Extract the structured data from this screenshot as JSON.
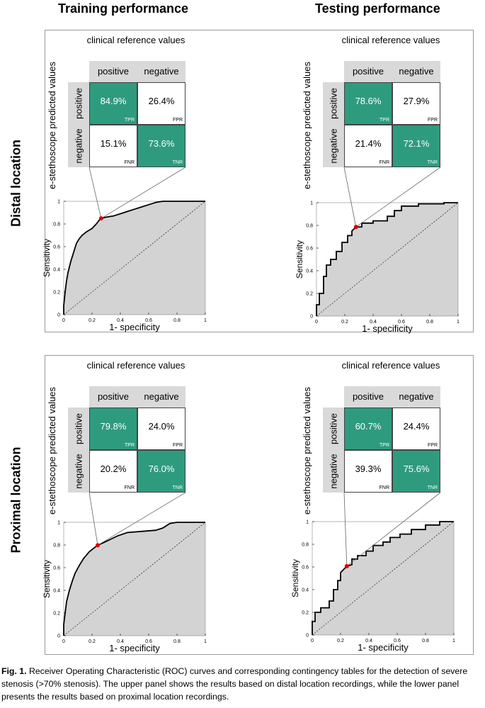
{
  "column_titles": [
    "Training performance",
    "Testing performance"
  ],
  "row_titles": [
    "Distal location",
    "Proximal location"
  ],
  "table_labels": {
    "ref_title": "clinical reference values",
    "pred_title": "e-stethoscope predicted values",
    "positive": "positive",
    "negative": "negative",
    "tpr": "TPR",
    "fpr": "FPR",
    "fnr": "FNR",
    "tnr": "TNR"
  },
  "caption": {
    "label": "Fig. 1.",
    "text": "Receiver Operating Characteristic (ROC) curves and corresponding contingency tables for the detection of severe stenosis (>70% stenosis). The upper panel shows the results based on distal location recordings, while the lower panel presents the results based on proximal location recordings."
  },
  "chart_data": [
    {
      "type": "line",
      "panel": "distal-training",
      "xlabel": "1- specificity",
      "ylabel": "Sensitivity",
      "xlim": [
        0,
        1
      ],
      "ylim": [
        0,
        1
      ],
      "x_ticks": [
        "0",
        "0.2",
        "0.4",
        "0.6",
        "0.8",
        "1"
      ],
      "y_ticks": [
        "0",
        "0.2",
        "0.4",
        "0.6",
        "0.8",
        "1"
      ],
      "operating_point": [
        0.264,
        0.849
      ],
      "table": {
        "tpr": "84.9%",
        "fpr": "26.4%",
        "fnr": "15.1%",
        "tnr": "73.6%"
      },
      "curve": [
        [
          0,
          0
        ],
        [
          0,
          0.08
        ],
        [
          0.01,
          0.2
        ],
        [
          0.02,
          0.3
        ],
        [
          0.03,
          0.37
        ],
        [
          0.05,
          0.47
        ],
        [
          0.07,
          0.55
        ],
        [
          0.09,
          0.63
        ],
        [
          0.11,
          0.67
        ],
        [
          0.13,
          0.7
        ],
        [
          0.16,
          0.73
        ],
        [
          0.2,
          0.76
        ],
        [
          0.23,
          0.8
        ],
        [
          0.26,
          0.849
        ],
        [
          0.3,
          0.86
        ],
        [
          0.35,
          0.87
        ],
        [
          0.4,
          0.89
        ],
        [
          0.45,
          0.91
        ],
        [
          0.5,
          0.93
        ],
        [
          0.55,
          0.95
        ],
        [
          0.6,
          0.97
        ],
        [
          0.65,
          0.99
        ],
        [
          0.7,
          1
        ],
        [
          1,
          1
        ]
      ]
    },
    {
      "type": "line",
      "panel": "distal-testing",
      "xlabel": "1- specificity",
      "ylabel": "Sensitivity",
      "xlim": [
        0,
        1
      ],
      "ylim": [
        0,
        1
      ],
      "x_ticks": [
        "0",
        "0.2",
        "0.4",
        "0.6",
        "0.8",
        "1"
      ],
      "y_ticks": [
        "0",
        "0.2",
        "0.4",
        "0.6",
        "0.8",
        "1"
      ],
      "operating_point": [
        0.279,
        0.786
      ],
      "table": {
        "tpr": "78.6%",
        "fpr": "27.9%",
        "fnr": "21.4%",
        "tnr": "72.1%"
      },
      "curve": [
        [
          0,
          0
        ],
        [
          0,
          0.1
        ],
        [
          0.02,
          0.1
        ],
        [
          0.02,
          0.2
        ],
        [
          0.05,
          0.2
        ],
        [
          0.05,
          0.35
        ],
        [
          0.07,
          0.35
        ],
        [
          0.07,
          0.45
        ],
        [
          0.1,
          0.45
        ],
        [
          0.1,
          0.5
        ],
        [
          0.14,
          0.5
        ],
        [
          0.14,
          0.57
        ],
        [
          0.18,
          0.57
        ],
        [
          0.18,
          0.65
        ],
        [
          0.22,
          0.65
        ],
        [
          0.22,
          0.71
        ],
        [
          0.25,
          0.71
        ],
        [
          0.25,
          0.75
        ],
        [
          0.279,
          0.786
        ],
        [
          0.32,
          0.786
        ],
        [
          0.32,
          0.82
        ],
        [
          0.4,
          0.82
        ],
        [
          0.4,
          0.84
        ],
        [
          0.5,
          0.84
        ],
        [
          0.5,
          0.88
        ],
        [
          0.55,
          0.88
        ],
        [
          0.55,
          0.93
        ],
        [
          0.6,
          0.93
        ],
        [
          0.6,
          0.97
        ],
        [
          0.72,
          0.97
        ],
        [
          0.72,
          0.99
        ],
        [
          0.9,
          0.99
        ],
        [
          0.9,
          1
        ],
        [
          1,
          1
        ]
      ]
    },
    {
      "type": "line",
      "panel": "proximal-training",
      "xlabel": "1- specificity",
      "ylabel": "Sensitivity",
      "xlim": [
        0,
        1
      ],
      "ylim": [
        0,
        1
      ],
      "x_ticks": [
        "0",
        "0.2",
        "0.4",
        "0.6",
        "0.8",
        "1"
      ],
      "y_ticks": [
        "0",
        "0.2",
        "0.4",
        "0.6",
        "0.8",
        "1"
      ],
      "operating_point": [
        0.24,
        0.798
      ],
      "table": {
        "tpr": "79.8%",
        "fpr": "24.0%",
        "fnr": "20.2%",
        "tnr": "76.0%"
      },
      "curve": [
        [
          0,
          0
        ],
        [
          0,
          0.1
        ],
        [
          0.01,
          0.2
        ],
        [
          0.02,
          0.3
        ],
        [
          0.04,
          0.4
        ],
        [
          0.06,
          0.48
        ],
        [
          0.08,
          0.55
        ],
        [
          0.11,
          0.62
        ],
        [
          0.14,
          0.68
        ],
        [
          0.18,
          0.74
        ],
        [
          0.21,
          0.77
        ],
        [
          0.24,
          0.798
        ],
        [
          0.28,
          0.82
        ],
        [
          0.33,
          0.85
        ],
        [
          0.38,
          0.88
        ],
        [
          0.45,
          0.91
        ],
        [
          0.55,
          0.92
        ],
        [
          0.65,
          0.93
        ],
        [
          0.7,
          0.95
        ],
        [
          0.75,
          0.99
        ],
        [
          0.8,
          1
        ],
        [
          1,
          1
        ]
      ]
    },
    {
      "type": "line",
      "panel": "proximal-testing",
      "xlabel": "1- specificity",
      "ylabel": "Sensitivity",
      "xlim": [
        0,
        1
      ],
      "ylim": [
        0,
        1
      ],
      "x_ticks": [
        "0",
        "0.2",
        "0.4",
        "0.6",
        "0.8",
        "1"
      ],
      "y_ticks": [
        "0",
        "0.2",
        "0.4",
        "0.6",
        "0.8",
        "1"
      ],
      "operating_point": [
        0.244,
        0.607
      ],
      "table": {
        "tpr": "60.7%",
        "fpr": "24.4%",
        "fnr": "39.3%",
        "tnr": "75.6%"
      },
      "curve": [
        [
          0,
          0
        ],
        [
          0,
          0.12
        ],
        [
          0.02,
          0.12
        ],
        [
          0.02,
          0.2
        ],
        [
          0.06,
          0.2
        ],
        [
          0.06,
          0.24
        ],
        [
          0.12,
          0.24
        ],
        [
          0.12,
          0.3
        ],
        [
          0.15,
          0.3
        ],
        [
          0.15,
          0.4
        ],
        [
          0.18,
          0.4
        ],
        [
          0.18,
          0.48
        ],
        [
          0.2,
          0.48
        ],
        [
          0.2,
          0.55
        ],
        [
          0.244,
          0.607
        ],
        [
          0.28,
          0.62
        ],
        [
          0.28,
          0.67
        ],
        [
          0.32,
          0.67
        ],
        [
          0.32,
          0.7
        ],
        [
          0.38,
          0.7
        ],
        [
          0.38,
          0.74
        ],
        [
          0.43,
          0.74
        ],
        [
          0.43,
          0.79
        ],
        [
          0.5,
          0.79
        ],
        [
          0.5,
          0.82
        ],
        [
          0.55,
          0.82
        ],
        [
          0.55,
          0.86
        ],
        [
          0.62,
          0.86
        ],
        [
          0.62,
          0.89
        ],
        [
          0.7,
          0.89
        ],
        [
          0.7,
          0.93
        ],
        [
          0.8,
          0.93
        ],
        [
          0.8,
          0.97
        ],
        [
          0.9,
          0.97
        ],
        [
          0.9,
          1
        ],
        [
          1,
          1
        ]
      ]
    }
  ]
}
